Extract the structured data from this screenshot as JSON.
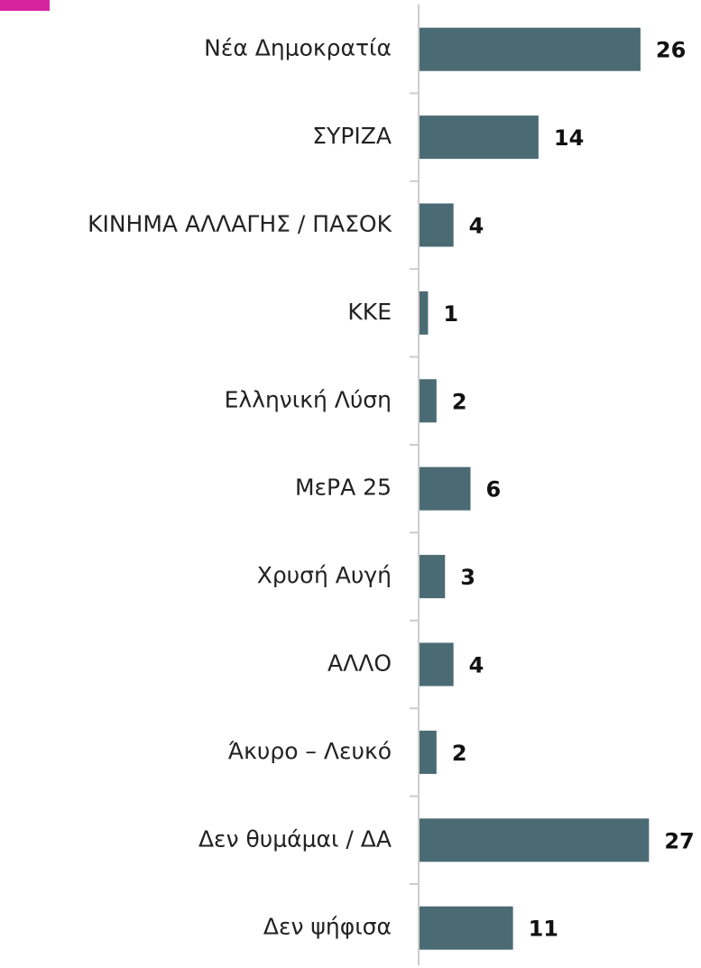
{
  "chart_data": {
    "type": "barh",
    "color": "#4a6b73",
    "categories": [
      "Νέα Δημοκρατία",
      "ΣΥΡΙΖΑ",
      "ΚΙΝΗΜΑ ΑΛΛΑΓΗΣ / ΠΑΣΟΚ",
      "ΚΚΕ",
      "Ελληνική Λύση",
      "ΜεΡΑ 25",
      "Χρυσή Αυγή",
      "ΑΛΛΟ",
      "Άκυρο – Λευκό",
      "Δεν θυμάμαι / ΔΑ",
      "Δεν ψήφισα"
    ],
    "values": [
      26,
      14,
      4,
      1,
      2,
      6,
      3,
      4,
      2,
      27,
      11
    ]
  }
}
